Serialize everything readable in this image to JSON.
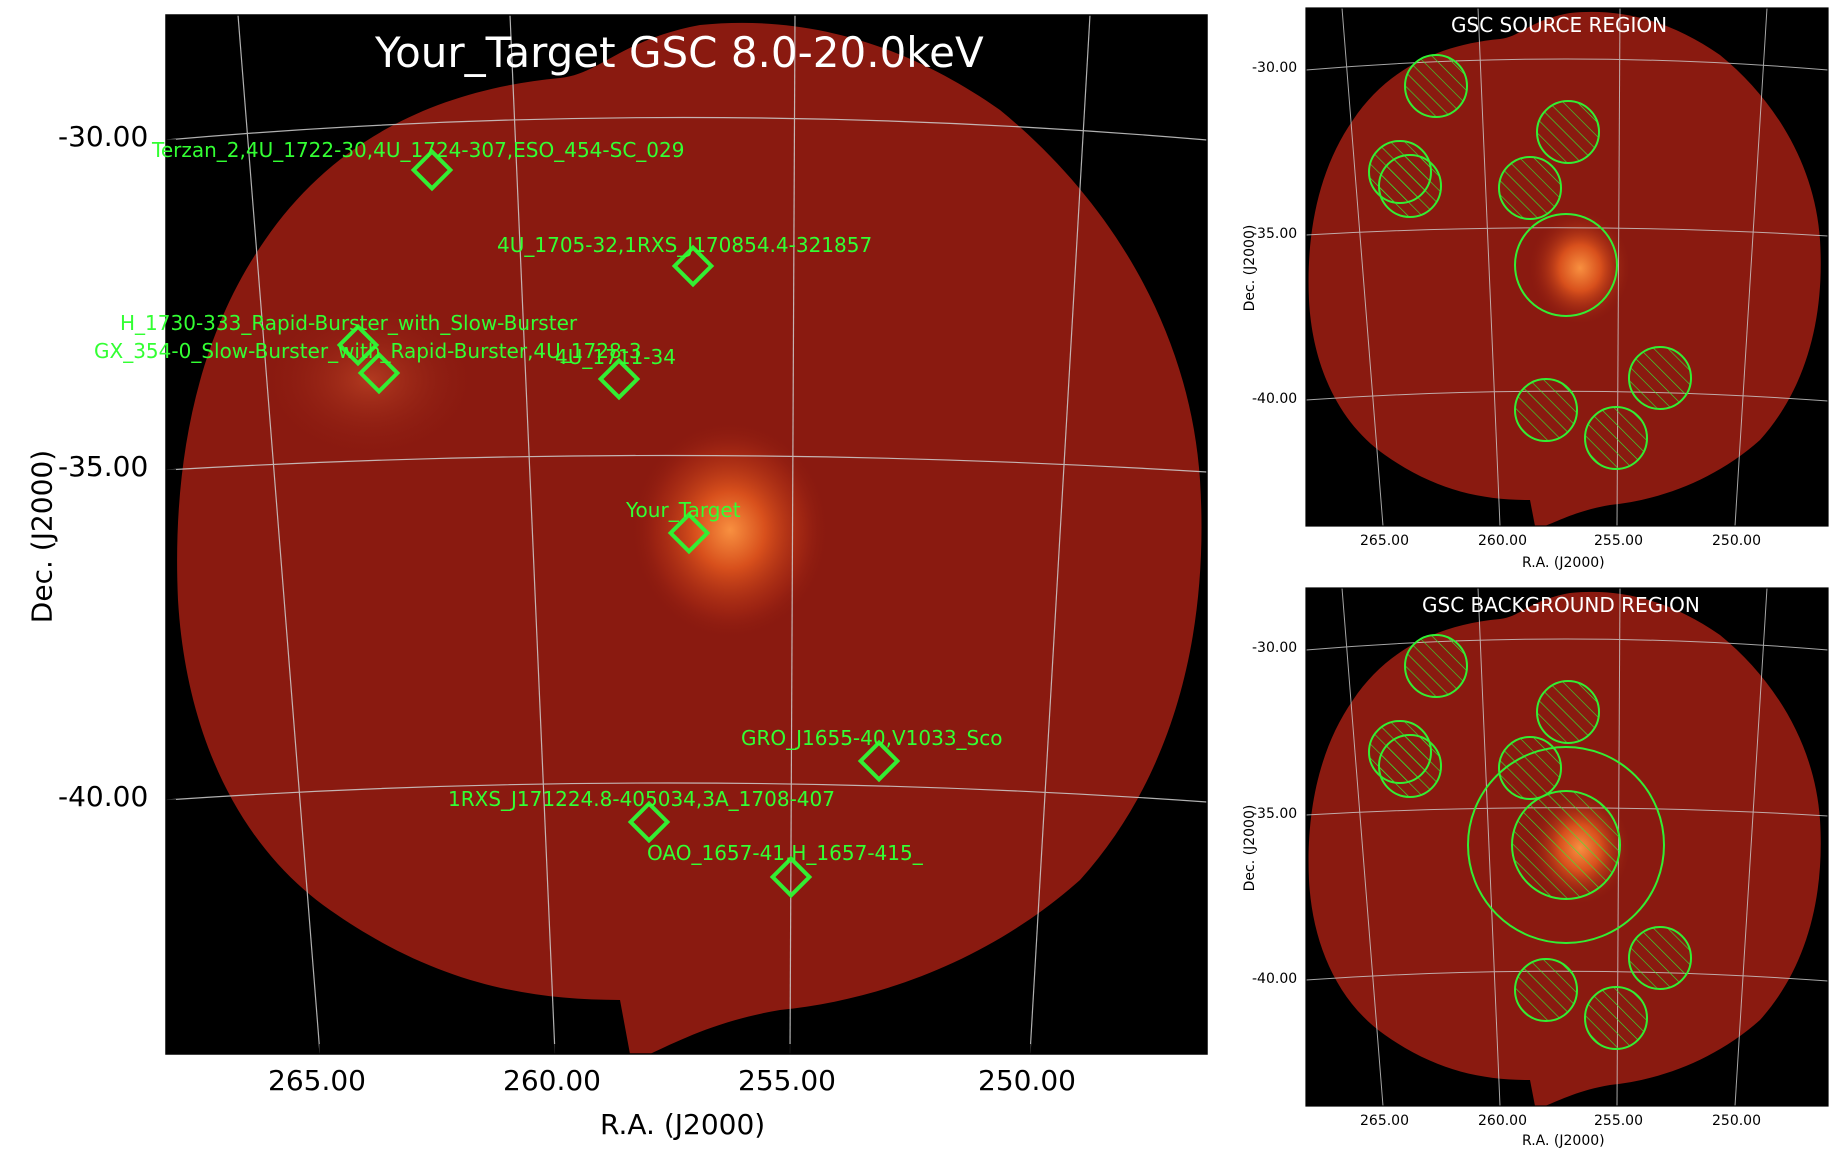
{
  "main": {
    "title": "Your_Target GSC 8.0-20.0keV",
    "xlabel": "R.A. (J2000)",
    "ylabel": "Dec. (J2000)",
    "xticks": [
      "265.00",
      "260.00",
      "255.00",
      "250.00"
    ],
    "yticks": [
      "-30.00",
      "-35.00",
      "-40.00"
    ],
    "sources": [
      {
        "label": "Terzan_2,4U_1722-30,4U_1724-307,ESO_454-SC_029"
      },
      {
        "label": "4U_1705-32,1RXS_J170854.4-321857"
      },
      {
        "label": "H_1730-333_Rapid-Burster_with_Slow-Burster"
      },
      {
        "label": "GX_354-0_Slow-Burster_with_Rapid-Burster,4U_1728-3"
      },
      {
        "label": "4U_1711-34"
      },
      {
        "label": "Your_Target"
      },
      {
        "label": "GRO_J1655-40,V1033_Sco"
      },
      {
        "label": "1RXS_J171224.8-405034,3A_1708-407"
      },
      {
        "label": "OAO_1657-41,H_1657-415_"
      }
    ]
  },
  "source_panel": {
    "title": "GSC SOURCE REGION",
    "xlabel": "R.A. (J2000)",
    "ylabel": "Dec. (J2000)",
    "xticks": [
      "265.00",
      "260.00",
      "255.00",
      "250.00"
    ],
    "yticks": [
      "-30.00",
      "-35.00",
      "-40.00"
    ]
  },
  "background_panel": {
    "title": "GSC BACKGROUND REGION",
    "xlabel": "R.A. (J2000)",
    "ylabel": "Dec. (J2000)",
    "xticks": [
      "265.00",
      "260.00",
      "255.00",
      "250.00"
    ],
    "yticks": [
      "-30.00",
      "-35.00",
      "-40.00"
    ]
  },
  "colors": {
    "background_sky": "#000000",
    "image_field": "#8a1a10",
    "bright_source": "#f07a30",
    "markers": "#33ee33",
    "grid": "#cccccc"
  }
}
